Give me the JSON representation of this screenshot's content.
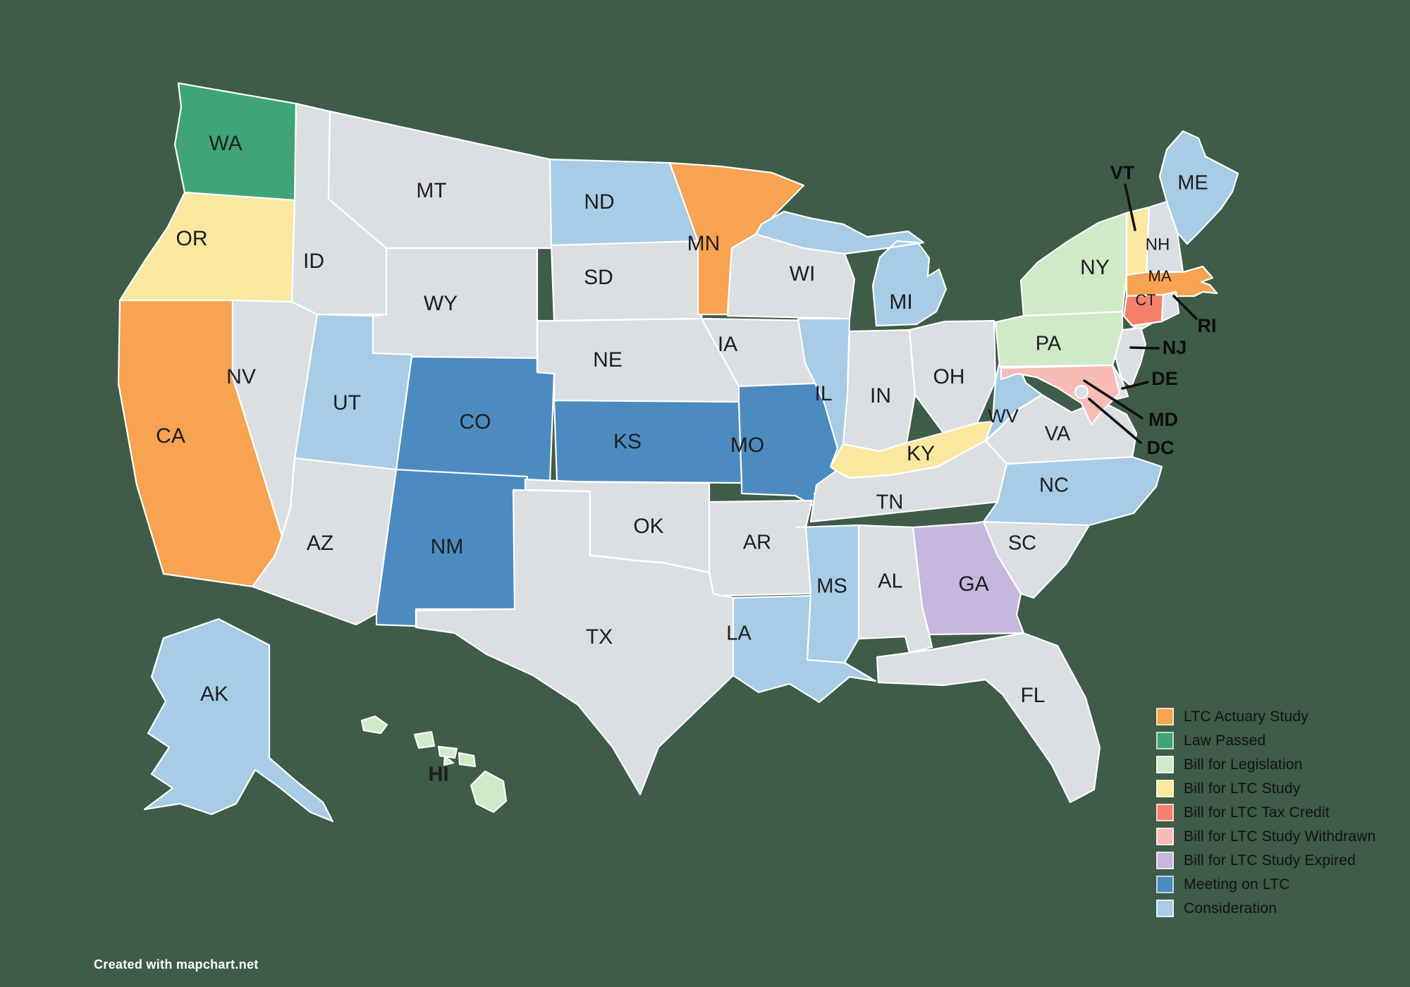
{
  "map": {
    "background_color": "#3E5C48",
    "default_state_color": "#DBDFE2",
    "border_color": "#FFFFFF",
    "label_color": "#1D1D1F",
    "attribution": "Created with mapchart.net"
  },
  "legend": {
    "items": [
      {
        "label": "LTC Actuary Study",
        "color": "#F7A351"
      },
      {
        "label": "Law Passed",
        "color": "#3FA476"
      },
      {
        "label": "Bill for Legislation",
        "color": "#D0E9C6"
      },
      {
        "label": "Bill for LTC Study",
        "color": "#FAE8A0"
      },
      {
        "label": "Bill for LTC Tax Credit",
        "color": "#F4806D"
      },
      {
        "label": "Bill for LTC Study Withdrawn",
        "color": "#F8BBB5"
      },
      {
        "label": "Bill for LTC Study Expired",
        "color": "#C5B7DD"
      },
      {
        "label": "Meeting on LTC",
        "color": "#4C8BC0"
      },
      {
        "label": "Consideration",
        "color": "#A8CCE6"
      }
    ]
  },
  "states": [
    {
      "abbr": "WA",
      "status": "Law Passed"
    },
    {
      "abbr": "OR",
      "status": "Bill for LTC Study"
    },
    {
      "abbr": "CA",
      "status": "LTC Actuary Study"
    },
    {
      "abbr": "NV",
      "status": "None"
    },
    {
      "abbr": "ID",
      "status": "None"
    },
    {
      "abbr": "MT",
      "status": "None"
    },
    {
      "abbr": "WY",
      "status": "None"
    },
    {
      "abbr": "UT",
      "status": "Consideration"
    },
    {
      "abbr": "CO",
      "status": "Meeting on LTC"
    },
    {
      "abbr": "AZ",
      "status": "None"
    },
    {
      "abbr": "NM",
      "status": "Meeting on LTC"
    },
    {
      "abbr": "ND",
      "status": "Consideration"
    },
    {
      "abbr": "SD",
      "status": "None"
    },
    {
      "abbr": "NE",
      "status": "None"
    },
    {
      "abbr": "KS",
      "status": "Meeting on LTC"
    },
    {
      "abbr": "OK",
      "status": "None"
    },
    {
      "abbr": "TX",
      "status": "None"
    },
    {
      "abbr": "MN",
      "status": "LTC Actuary Study"
    },
    {
      "abbr": "IA",
      "status": "None"
    },
    {
      "abbr": "MO",
      "status": "Meeting on LTC"
    },
    {
      "abbr": "AR",
      "status": "None"
    },
    {
      "abbr": "LA",
      "status": "Consideration"
    },
    {
      "abbr": "WI",
      "status": "None"
    },
    {
      "abbr": "IL",
      "status": "Consideration"
    },
    {
      "abbr": "IN",
      "status": "None"
    },
    {
      "abbr": "MI",
      "status": "Consideration"
    },
    {
      "abbr": "OH",
      "status": "None"
    },
    {
      "abbr": "KY",
      "status": "Bill for LTC Study"
    },
    {
      "abbr": "TN",
      "status": "None"
    },
    {
      "abbr": "MS",
      "status": "Consideration"
    },
    {
      "abbr": "AL",
      "status": "None"
    },
    {
      "abbr": "GA",
      "status": "Bill for LTC Study Expired"
    },
    {
      "abbr": "FL",
      "status": "None"
    },
    {
      "abbr": "SC",
      "status": "None"
    },
    {
      "abbr": "NC",
      "status": "Consideration"
    },
    {
      "abbr": "VA",
      "status": "None"
    },
    {
      "abbr": "WV",
      "status": "Consideration"
    },
    {
      "abbr": "PA",
      "status": "Bill for Legislation"
    },
    {
      "abbr": "NY",
      "status": "Bill for Legislation"
    },
    {
      "abbr": "NJ",
      "status": "None"
    },
    {
      "abbr": "DE",
      "status": "None"
    },
    {
      "abbr": "MD",
      "status": "Bill for LTC Study Withdrawn"
    },
    {
      "abbr": "DC",
      "status": "None"
    },
    {
      "abbr": "VT",
      "status": "Bill for LTC Study"
    },
    {
      "abbr": "NH",
      "status": "None"
    },
    {
      "abbr": "MA",
      "status": "LTC Actuary Study"
    },
    {
      "abbr": "CT",
      "status": "Bill for LTC Tax Credit"
    },
    {
      "abbr": "RI",
      "status": "None"
    },
    {
      "abbr": "ME",
      "status": "Consideration"
    },
    {
      "abbr": "AK",
      "status": "Consideration"
    },
    {
      "abbr": "HI",
      "status": "Bill for Legislation"
    }
  ]
}
